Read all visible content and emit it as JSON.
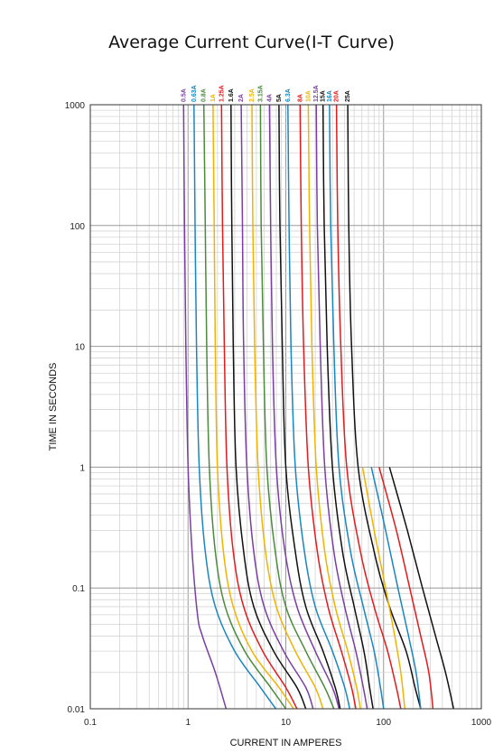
{
  "chart_data": {
    "type": "line",
    "title": "Average Current Curve(I-T Curve)",
    "xlabel": "CURRENT IN AMPERES",
    "ylabel": "TIME IN SECONDS",
    "x_scale": "log",
    "y_scale": "log",
    "xlim": [
      0.1,
      1000
    ],
    "ylim": [
      0.01,
      1000
    ],
    "x_ticks": [
      "0.1",
      "1",
      "10",
      "100",
      "1000"
    ],
    "y_ticks": [
      "0.01",
      "0.1",
      "1",
      "10",
      "100",
      "1000"
    ],
    "grid": true,
    "legend": "curve labels along top",
    "series": [
      {
        "name": "0.5A",
        "color": "#7a3fa0",
        "points": [
          [
            0.9,
            1000
          ],
          [
            0.92,
            100
          ],
          [
            0.95,
            10
          ],
          [
            1.0,
            1
          ],
          [
            1.1,
            0.2
          ],
          [
            1.25,
            0.06
          ],
          [
            1.4,
            0.04
          ],
          [
            1.9,
            0.02
          ],
          [
            2.45,
            0.01
          ]
        ]
      },
      {
        "name": "0.63A",
        "color": "#1a86c0",
        "points": [
          [
            1.15,
            1000
          ],
          [
            1.18,
            100
          ],
          [
            1.22,
            10
          ],
          [
            1.3,
            1
          ],
          [
            1.5,
            0.2
          ],
          [
            1.9,
            0.07
          ],
          [
            3.0,
            0.03
          ],
          [
            5.5,
            0.015
          ],
          [
            7.9,
            0.01
          ]
        ]
      },
      {
        "name": "0.8A",
        "color": "#4c8a3c",
        "points": [
          [
            1.45,
            1000
          ],
          [
            1.5,
            100
          ],
          [
            1.55,
            10
          ],
          [
            1.65,
            1
          ],
          [
            1.9,
            0.2
          ],
          [
            2.4,
            0.07
          ],
          [
            3.8,
            0.03
          ],
          [
            7.0,
            0.015
          ],
          [
            10,
            0.01
          ]
        ]
      },
      {
        "name": "1A",
        "color": "#f0b400",
        "points": [
          [
            1.8,
            1000
          ],
          [
            1.85,
            100
          ],
          [
            1.9,
            10
          ],
          [
            2.0,
            1
          ],
          [
            2.3,
            0.2
          ],
          [
            2.9,
            0.07
          ],
          [
            4.5,
            0.03
          ],
          [
            8.5,
            0.015
          ],
          [
            12,
            0.01
          ]
        ]
      },
      {
        "name": "1.25A",
        "color": "#e41a1c",
        "points": [
          [
            2.2,
            1000
          ],
          [
            2.25,
            100
          ],
          [
            2.35,
            10
          ],
          [
            2.5,
            1
          ],
          [
            2.9,
            0.2
          ],
          [
            3.7,
            0.07
          ],
          [
            5.8,
            0.03
          ],
          [
            10,
            0.015
          ],
          [
            13,
            0.01
          ]
        ]
      },
      {
        "name": "1.6A",
        "color": "#111111",
        "points": [
          [
            2.75,
            1000
          ],
          [
            2.8,
            100
          ],
          [
            2.9,
            10
          ],
          [
            3.1,
            1
          ],
          [
            3.7,
            0.2
          ],
          [
            4.7,
            0.07
          ],
          [
            7.5,
            0.03
          ],
          [
            13,
            0.015
          ],
          [
            16,
            0.01
          ]
        ]
      },
      {
        "name": "2A",
        "color": "#7a3fa0",
        "points": [
          [
            3.5,
            1000
          ],
          [
            3.6,
            100
          ],
          [
            3.7,
            10
          ],
          [
            4.0,
            1
          ],
          [
            4.7,
            0.2
          ],
          [
            6.0,
            0.07
          ],
          [
            9.5,
            0.03
          ],
          [
            16,
            0.015
          ],
          [
            19,
            0.01
          ]
        ]
      },
      {
        "name": "2.5A",
        "color": "#f0b400",
        "points": [
          [
            4.5,
            1000
          ],
          [
            4.6,
            100
          ],
          [
            4.8,
            10
          ],
          [
            5.2,
            1
          ],
          [
            6.2,
            0.2
          ],
          [
            8.0,
            0.07
          ],
          [
            12.5,
            0.03
          ],
          [
            20,
            0.015
          ],
          [
            24,
            0.01
          ]
        ]
      },
      {
        "name": "3.15A",
        "color": "#4c8a3c",
        "points": [
          [
            5.5,
            1000
          ],
          [
            5.6,
            100
          ],
          [
            5.9,
            10
          ],
          [
            6.4,
            1
          ],
          [
            7.8,
            0.2
          ],
          [
            10,
            0.07
          ],
          [
            16,
            0.03
          ],
          [
            25,
            0.015
          ],
          [
            31,
            0.01
          ]
        ]
      },
      {
        "name": "4A",
        "color": "#7a3fa0",
        "points": [
          [
            6.8,
            1000
          ],
          [
            7.0,
            100
          ],
          [
            7.3,
            10
          ],
          [
            8.0,
            1
          ],
          [
            9.8,
            0.2
          ],
          [
            13,
            0.07
          ],
          [
            20,
            0.03
          ],
          [
            30,
            0.015
          ],
          [
            35,
            0.01
          ]
        ]
      },
      {
        "name": "5A",
        "color": "#111111",
        "points": [
          [
            8.5,
            1000
          ],
          [
            8.7,
            100
          ],
          [
            9.2,
            10
          ],
          [
            10,
            1
          ],
          [
            12.5,
            0.2
          ],
          [
            16,
            0.07
          ],
          [
            24,
            0.03
          ],
          [
            32,
            0.015
          ],
          [
            36,
            0.01
          ]
        ]
      },
      {
        "name": "6.3A",
        "color": "#1a86c0",
        "points": [
          [
            10.5,
            1000
          ],
          [
            10.8,
            100
          ],
          [
            11.3,
            10
          ],
          [
            12.5,
            1
          ],
          [
            15.5,
            0.2
          ],
          [
            20,
            0.07
          ],
          [
            30,
            0.03
          ],
          [
            40,
            0.015
          ],
          [
            45,
            0.01
          ]
        ]
      },
      {
        "name": "8A",
        "color": "#e41a1c",
        "points": [
          [
            14,
            1000
          ],
          [
            14.4,
            100
          ],
          [
            15.2,
            10
          ],
          [
            17,
            1
          ],
          [
            21,
            0.2
          ],
          [
            27,
            0.07
          ],
          [
            37,
            0.03
          ],
          [
            47,
            0.015
          ],
          [
            52,
            0.01
          ]
        ]
      },
      {
        "name": "10A",
        "color": "#f0b400",
        "points": [
          [
            17,
            1000
          ],
          [
            17.5,
            100
          ],
          [
            18.5,
            10
          ],
          [
            20.5,
            1
          ],
          [
            25,
            0.2
          ],
          [
            32,
            0.07
          ],
          [
            43,
            0.03
          ],
          [
            53,
            0.015
          ],
          [
            58,
            0.01
          ]
        ]
      },
      {
        "name": "12.5A",
        "color": "#7a3fa0",
        "points": [
          [
            20.5,
            1000
          ],
          [
            21,
            100
          ],
          [
            22.5,
            10
          ],
          [
            25,
            1
          ],
          [
            31,
            0.2
          ],
          [
            40,
            0.07
          ],
          [
            52,
            0.03
          ],
          [
            62,
            0.015
          ],
          [
            68,
            0.01
          ]
        ]
      },
      {
        "name": "15A",
        "color": "#111111",
        "points": [
          [
            24,
            1000
          ],
          [
            24.7,
            100
          ],
          [
            26.5,
            10
          ],
          [
            30,
            1
          ],
          [
            38,
            0.2
          ],
          [
            50,
            0.07
          ],
          [
            63,
            0.03
          ],
          [
            72,
            0.015
          ],
          [
            78,
            0.01
          ]
        ]
      },
      {
        "name": "16A",
        "color": "#1a86c0",
        "points": [
          [
            28,
            1000
          ],
          [
            28.8,
            100
          ],
          [
            31,
            10
          ],
          [
            35,
            1
          ],
          [
            46,
            0.2
          ],
          [
            62,
            0.07
          ],
          [
            80,
            0.03
          ],
          [
            93,
            0.015
          ],
          [
            100,
            0.01
          ]
        ]
      },
      {
        "name": "20A",
        "color": "#e41a1c",
        "points": [
          [
            33,
            1000
          ],
          [
            34,
            100
          ],
          [
            36.5,
            10
          ],
          [
            42,
            1
          ],
          [
            58,
            0.2
          ],
          [
            80,
            0.07
          ],
          [
            110,
            0.03
          ],
          [
            135,
            0.015
          ],
          [
            150,
            0.01
          ]
        ]
      },
      {
        "name": "25A",
        "color": "#111111",
        "points": [
          [
            43,
            1000
          ],
          [
            44,
            100
          ],
          [
            47,
            10
          ],
          [
            55,
            1
          ],
          [
            80,
            0.2
          ],
          [
            115,
            0.07
          ],
          [
            170,
            0.03
          ],
          [
            210,
            0.015
          ],
          [
            240,
            0.01
          ]
        ]
      }
    ],
    "extra_series": [
      {
        "name": "",
        "color": "#f0b400",
        "points": [
          [
            61,
            1
          ],
          [
            80,
            0.3
          ],
          [
            105,
            0.1
          ],
          [
            130,
            0.04
          ],
          [
            150,
            0.02
          ],
          [
            165,
            0.01
          ]
        ]
      },
      {
        "name": "",
        "color": "#1a86c0",
        "points": [
          [
            75,
            1
          ],
          [
            105,
            0.3
          ],
          [
            140,
            0.1
          ],
          [
            180,
            0.04
          ],
          [
            215,
            0.02
          ],
          [
            240,
            0.01
          ]
        ]
      },
      {
        "name": "",
        "color": "#e41a1c",
        "points": [
          [
            90,
            1
          ],
          [
            135,
            0.3
          ],
          [
            185,
            0.1
          ],
          [
            240,
            0.04
          ],
          [
            290,
            0.02
          ],
          [
            320,
            0.01
          ]
        ]
      },
      {
        "name": "",
        "color": "#111111",
        "points": [
          [
            115,
            1
          ],
          [
            175,
            0.3
          ],
          [
            250,
            0.1
          ],
          [
            340,
            0.04
          ],
          [
            430,
            0.02
          ],
          [
            520,
            0.01
          ]
        ]
      }
    ]
  }
}
